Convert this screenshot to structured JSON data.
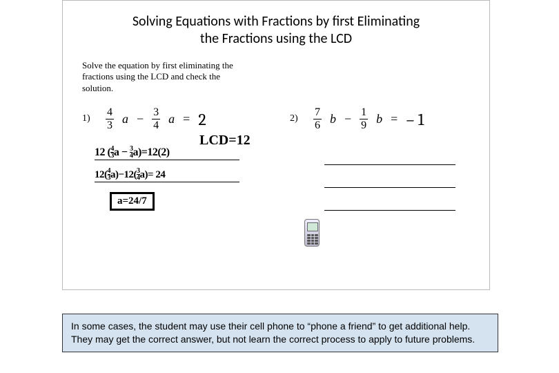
{
  "worksheet": {
    "title_line1": "Solving Equations with Fractions by first Eliminating",
    "title_line2": "the Fractions using the LCD",
    "instructions": "Solve the equation by first eliminating the fractions using the LCD and check the solution.",
    "problems": [
      {
        "number": "1)",
        "frac1_num": "4",
        "frac1_den": "3",
        "var1": "a",
        "frac2_num": "3",
        "frac2_den": "4",
        "var2": "a",
        "operator": "−",
        "equals": "=",
        "rhs": "2",
        "lcd_label": "LCD=12",
        "work_line1_prefix": "12 (",
        "work_line1_f1n": "4",
        "work_line1_f1d": "3",
        "work_line1_v1": "a",
        "work_line1_mid": " − ",
        "work_line1_f2n": "3",
        "work_line1_f2d": "4",
        "work_line1_v2": "a",
        "work_line1_suffix": ")=12(2)",
        "work_line2_a": "12(",
        "work_line2_f1n": "4",
        "work_line2_f1d": "3",
        "work_line2_v1": "a",
        "work_line2_b": ")−12(",
        "work_line2_f2n": "3",
        "work_line2_f2d": "4",
        "work_line2_v2": "a",
        "work_line2_c": ")= 24",
        "answer": "a=24/7"
      },
      {
        "number": "2)",
        "frac1_num": "7",
        "frac1_den": "6",
        "var1": "b",
        "frac2_num": "1",
        "frac2_den": "9",
        "var2": "b",
        "operator": "−",
        "equals": "=",
        "rhs": "1",
        "rhs_neg": true
      }
    ]
  },
  "caption": "In some cases, the student may use their cell phone to “phone a friend” to get additional help. They may get the correct answer, but not learn the correct process to apply to future problems.",
  "colors": {
    "caption_bg": "#d5e3f0",
    "border": "#bbbbbb",
    "text": "#000000"
  }
}
